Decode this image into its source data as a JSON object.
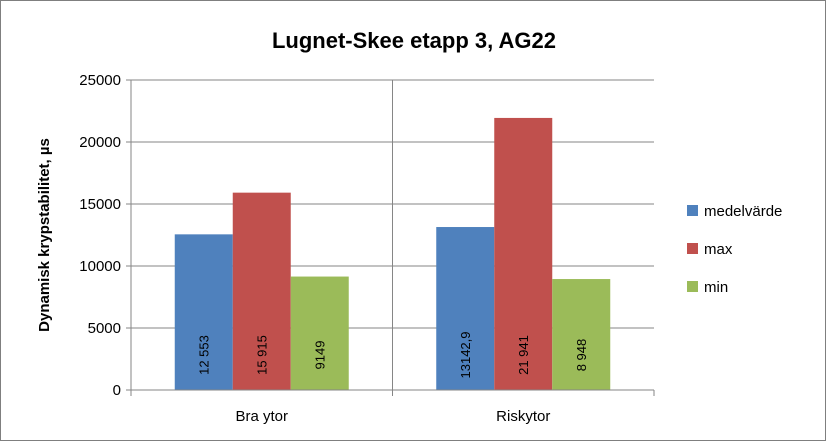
{
  "chart_data": {
    "type": "bar",
    "title": "Lugnet-Skee etapp 3, AG22",
    "xlabel": "",
    "ylabel": "Dynamisk krypstabilitet, µs",
    "ylim": [
      0,
      25000
    ],
    "yticks": [
      0,
      5000,
      10000,
      15000,
      20000,
      25000
    ],
    "ytick_labels": [
      "0",
      "5000",
      "10000",
      "15000",
      "20000",
      "25000"
    ],
    "grid": true,
    "legend_position": "right",
    "categories": [
      "Bra ytor",
      "Riskytor"
    ],
    "series": [
      {
        "name": "medelvärde",
        "color": "#4f81bd",
        "values": [
          12553,
          13142.9
        ],
        "labels": [
          "12 553",
          "13142,9"
        ]
      },
      {
        "name": "max",
        "color": "#c0504d",
        "values": [
          15915,
          21941
        ],
        "labels": [
          "15 915",
          "21 941"
        ]
      },
      {
        "name": "min",
        "color": "#9bbb59",
        "values": [
          9149,
          8948
        ],
        "labels": [
          "9149",
          "8 948"
        ]
      }
    ]
  }
}
